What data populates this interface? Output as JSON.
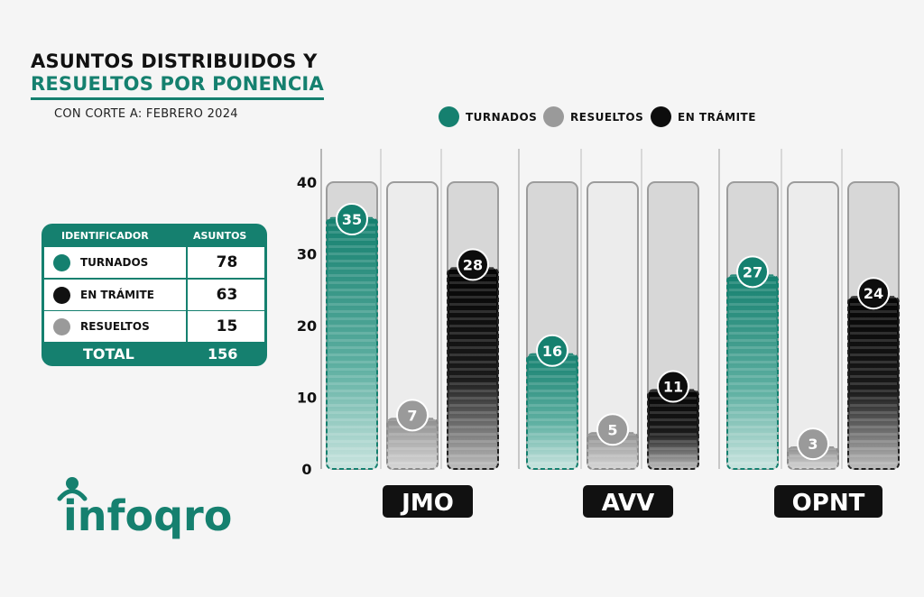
{
  "title": {
    "line1": "ASUNTOS DISTRIBUIDOS Y",
    "line2": "RESUELTOS POR PONENCIA"
  },
  "subtitle": "CON CORTE A: FEBRERO 2024",
  "colors": {
    "turnados": "#15806f",
    "resueltos": "#9a9a9a",
    "en_tramite": "#0d0d0d",
    "accent": "#15806f"
  },
  "summary_table": {
    "headers": [
      "IDENTIFICADOR",
      "ASUNTOS"
    ],
    "rows": [
      {
        "label": "TURNADOS",
        "value": "78",
        "color": "#15806f"
      },
      {
        "label": "EN TRÁMITE",
        "value": "63",
        "color": "#111111"
      },
      {
        "label": "RESUELTOS",
        "value": "15",
        "color": "#9a9a9a"
      }
    ],
    "total_label": "TOTAL",
    "total_value": "156"
  },
  "logo": {
    "text": "infoqro"
  },
  "legend": [
    {
      "label": "TURNADOS",
      "color": "#15806f"
    },
    {
      "label": "RESUELTOS",
      "color": "#9a9a9a"
    },
    {
      "label": "EN TRÁMITE",
      "color": "#0d0d0d"
    }
  ],
  "chart_data": {
    "type": "bar",
    "categories": [
      "JMO",
      "AVV",
      "OPNT"
    ],
    "series": [
      {
        "name": "TURNADOS",
        "values": [
          35,
          16,
          27
        ]
      },
      {
        "name": "RESUELTOS",
        "values": [
          7,
          5,
          3
        ]
      },
      {
        "name": "EN TRÁMITE",
        "values": [
          28,
          11,
          24
        ]
      }
    ],
    "y_ticks": [
      "0",
      "10",
      "20",
      "30",
      "40"
    ],
    "ylim": [
      0,
      40
    ],
    "legend_position": "top",
    "grid": false
  }
}
